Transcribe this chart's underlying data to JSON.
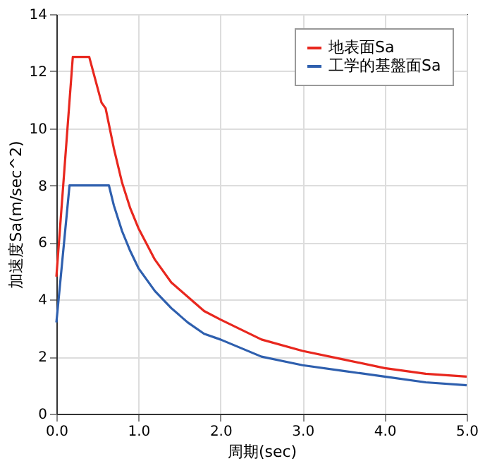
{
  "chart_data": {
    "type": "line",
    "xlabel": "周期(sec)",
    "ylabel": "加速度Sa(m/sec^2)",
    "xlim": [
      0,
      5
    ],
    "ylim": [
      0,
      14
    ],
    "xticks": [
      {
        "value": 0,
        "label": "0.0"
      },
      {
        "value": 1,
        "label": "1.0"
      },
      {
        "value": 2,
        "label": "2.0"
      },
      {
        "value": 3,
        "label": "3.0"
      },
      {
        "value": 4,
        "label": "4.0"
      },
      {
        "value": 5,
        "label": "5.0"
      }
    ],
    "yticks": [
      0,
      2,
      4,
      6,
      8,
      10,
      12,
      14
    ],
    "grid": true,
    "legend": "top right",
    "marker": "none",
    "line_style": "solid",
    "series": [
      {
        "name": "地表面Sa",
        "color": "#e8271e",
        "x": [
          0,
          0.2,
          0.4,
          0.55,
          0.6,
          0.7,
          0.8,
          0.9,
          1,
          1.2,
          1.4,
          1.6,
          1.8,
          2,
          2.5,
          3,
          3.5,
          4,
          4.5,
          5
        ],
        "values": [
          4.8,
          12.5,
          12.5,
          10.9,
          10.7,
          9.3,
          8.1,
          7.2,
          6.5,
          5.4,
          4.6,
          4.1,
          3.6,
          3.3,
          2.6,
          2.2,
          1.9,
          1.6,
          1.4,
          1.3
        ]
      },
      {
        "name": "工学的基盤面Sa",
        "color": "#2e5fae",
        "x": [
          0,
          0.16,
          0.64,
          0.7,
          0.8,
          0.9,
          1,
          1.2,
          1.4,
          1.6,
          1.8,
          2,
          2.5,
          3,
          3.5,
          4,
          4.5,
          5
        ],
        "values": [
          3.2,
          8,
          8,
          7.3,
          6.4,
          5.7,
          5.1,
          4.3,
          3.7,
          3.2,
          2.8,
          2.6,
          2.0,
          1.7,
          1.5,
          1.3,
          1.1,
          1.0
        ]
      }
    ]
  }
}
